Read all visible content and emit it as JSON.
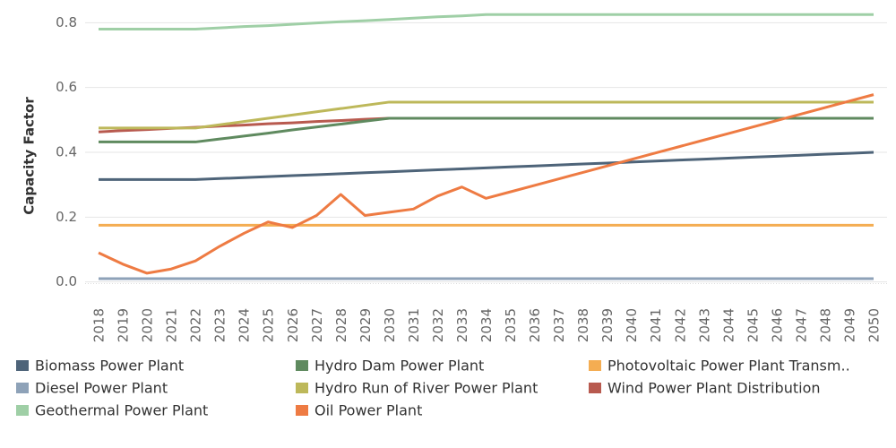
{
  "chart_data": {
    "type": "line",
    "y_label": "Capacity Factor",
    "categories": [
      "2018",
      "2019",
      "2020",
      "2021",
      "2022",
      "2023",
      "2024",
      "2025",
      "2026",
      "2027",
      "2028",
      "2029",
      "2030",
      "2031",
      "2032",
      "2033",
      "2034",
      "2035",
      "2036",
      "2037",
      "2038",
      "2039",
      "2040",
      "2041",
      "2042",
      "2043",
      "2044",
      "2045",
      "2046",
      "2047",
      "2048",
      "2049",
      "2050"
    ],
    "ylim": [
      -0.07,
      0.87
    ],
    "yticks": [
      {
        "value": 0,
        "label": "0.0"
      },
      0.2,
      0.4,
      0.6,
      0.8
    ],
    "grid": true,
    "series": [
      {
        "name": "Biomass Power Plant",
        "color": "#4e6479",
        "values": [
          0.316,
          0.316,
          0.316,
          0.316,
          0.316,
          0.319,
          0.322,
          0.325,
          0.328,
          0.331,
          0.334,
          0.337,
          0.34,
          0.343,
          0.346,
          0.349,
          0.352,
          0.355,
          0.358,
          0.361,
          0.364,
          0.367,
          0.37,
          0.373,
          0.376,
          0.379,
          0.382,
          0.385,
          0.388,
          0.391,
          0.394,
          0.397,
          0.4
        ]
      },
      {
        "name": "Hydro Dam Power Plant",
        "color": "#5f8a5f",
        "values": [
          0.432,
          0.432,
          0.432,
          0.432,
          0.432,
          0.441,
          0.45,
          0.459,
          0.469,
          0.478,
          0.487,
          0.496,
          0.505,
          0.505,
          0.505,
          0.505,
          0.505,
          0.505,
          0.505,
          0.505,
          0.505,
          0.505,
          0.505,
          0.505,
          0.505,
          0.505,
          0.505,
          0.505,
          0.505,
          0.505,
          0.505,
          0.505,
          0.505
        ]
      },
      {
        "name": "Photovoltaic Power Plant Transm..",
        "color": "#f4ad52",
        "values": [
          0.175,
          0.175,
          0.175,
          0.175,
          0.175,
          0.175,
          0.175,
          0.175,
          0.175,
          0.175,
          0.175,
          0.175,
          0.175,
          0.175,
          0.175,
          0.175,
          0.175,
          0.175,
          0.175,
          0.175,
          0.175,
          0.175,
          0.175,
          0.175,
          0.175,
          0.175,
          0.175,
          0.175,
          0.175,
          0.175,
          0.175,
          0.175,
          0.175
        ]
      },
      {
        "name": "Diesel Power Plant",
        "color": "#8ea2b8",
        "values": [
          0.01,
          0.01,
          0.01,
          0.01,
          0.01,
          0.01,
          0.01,
          0.01,
          0.01,
          0.01,
          0.01,
          0.01,
          0.01,
          0.01,
          0.01,
          0.01,
          0.01,
          0.01,
          0.01,
          0.01,
          0.01,
          0.01,
          0.01,
          0.01,
          0.01,
          0.01,
          0.01,
          0.01,
          0.01,
          0.01,
          0.01,
          0.01,
          0.01
        ]
      },
      {
        "name": "Hydro Run of River Power Plant",
        "color": "#bdb85a",
        "values": [
          0.475,
          0.475,
          0.475,
          0.475,
          0.475,
          0.485,
          0.495,
          0.505,
          0.515,
          0.525,
          0.535,
          0.545,
          0.555,
          0.555,
          0.555,
          0.555,
          0.555,
          0.555,
          0.555,
          0.555,
          0.555,
          0.555,
          0.555,
          0.555,
          0.555,
          0.555,
          0.555,
          0.555,
          0.555,
          0.555,
          0.555,
          0.555,
          0.555
        ]
      },
      {
        "name": "Wind Power Plant Distribution",
        "color": "#b85a4f",
        "values": [
          0.463,
          0.467,
          0.47,
          0.474,
          0.477,
          0.481,
          0.484,
          0.488,
          0.491,
          0.495,
          0.498,
          0.502,
          0.505,
          0.505,
          0.505,
          0.505,
          0.505,
          0.505,
          0.505,
          0.505,
          0.505,
          0.505,
          0.505,
          0.505,
          0.505,
          0.505,
          0.505,
          0.505,
          0.505,
          0.505,
          0.505,
          0.505,
          0.505
        ]
      },
      {
        "name": "Geothermal Power Plant",
        "color": "#9fcfa6",
        "values": [
          0.78,
          0.78,
          0.78,
          0.78,
          0.78,
          0.784,
          0.788,
          0.791,
          0.795,
          0.799,
          0.803,
          0.806,
          0.81,
          0.814,
          0.818,
          0.821,
          0.825,
          0.825,
          0.825,
          0.825,
          0.825,
          0.825,
          0.825,
          0.825,
          0.825,
          0.825,
          0.825,
          0.825,
          0.825,
          0.825,
          0.825,
          0.825,
          0.825
        ]
      },
      {
        "name": "Oil Power Plant",
        "color": "#ee7b43",
        "values": [
          0.09,
          0.055,
          0.027,
          0.04,
          0.065,
          0.11,
          0.15,
          0.185,
          0.168,
          0.205,
          0.27,
          0.205,
          0.215,
          0.225,
          0.265,
          0.293,
          0.258,
          0.278,
          0.298,
          0.318,
          0.338,
          0.358,
          0.378,
          0.398,
          0.418,
          0.438,
          0.458,
          0.478,
          0.498,
          0.518,
          0.538,
          0.558,
          0.578
        ]
      }
    ]
  }
}
